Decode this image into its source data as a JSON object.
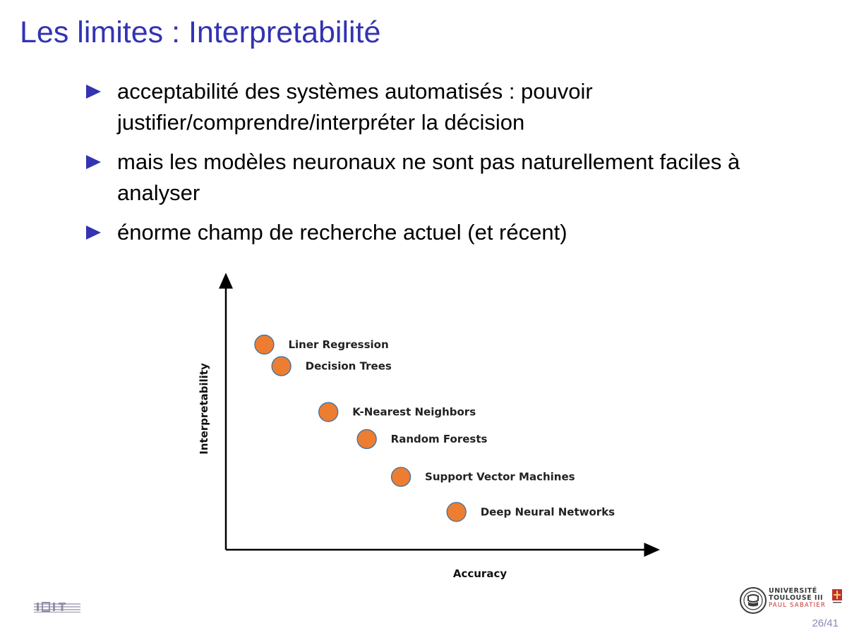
{
  "slide": {
    "title": "Les limites : Interpretabilité",
    "bullets": [
      "acceptabilité des systèmes automatisés : pouvoir justifier/comprendre/interpréter la décision",
      "mais les modèles neuronaux ne sont pas naturellement faciles à analyser",
      "énorme champ de recherche actuel (et récent)"
    ],
    "page_number": "26/41"
  },
  "logos": {
    "university": {
      "line1": "UNIVERSITÉ",
      "line2": "TOULOUSE III",
      "line3": "PAUL SABATIER"
    }
  },
  "colors": {
    "title": "#3333b3",
    "bullet_marker": "#3333b3",
    "point_fill": "#ed7d31",
    "point_stroke": "#41719c",
    "page_number": "#8a8ab8"
  },
  "chart_data": {
    "type": "scatter",
    "xlabel": "Accuracy",
    "ylabel": "Interpretability",
    "xlim": [
      0,
      10
    ],
    "ylim": [
      0,
      10
    ],
    "grid": false,
    "legend": "none",
    "points": [
      {
        "label": "Liner Regression",
        "x": 0.9,
        "y": 7.6
      },
      {
        "label": "Decision Trees",
        "x": 1.3,
        "y": 6.8
      },
      {
        "label": "K-Nearest Neighbors",
        "x": 2.4,
        "y": 5.1
      },
      {
        "label": "Random Forests",
        "x": 3.3,
        "y": 4.1
      },
      {
        "label": "Support Vector Machines",
        "x": 4.1,
        "y": 2.7
      },
      {
        "label": "Deep Neural Networks",
        "x": 5.4,
        "y": 1.4
      }
    ]
  }
}
